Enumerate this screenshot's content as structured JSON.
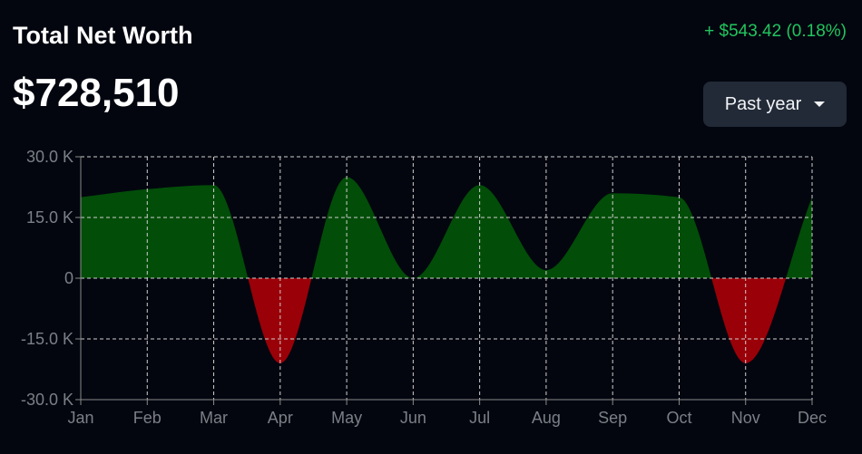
{
  "header": {
    "title": "Total Net Worth",
    "value": "$728,510",
    "change": "+ $543.42 (0.18%)",
    "range_select": "Past year"
  },
  "colors": {
    "positive": "#024d08",
    "negative": "#9a0008",
    "change": "#22c55e",
    "background": "#03060f"
  },
  "chart_data": {
    "type": "area",
    "categories": [
      "Jan",
      "Feb",
      "Mar",
      "Apr",
      "May",
      "Jun",
      "Jul",
      "Aug",
      "Sep",
      "Oct",
      "Nov",
      "Dec"
    ],
    "values": [
      20000,
      22000,
      23000,
      -21000,
      25000,
      0,
      23000,
      2000,
      21000,
      20000,
      -21000,
      20000
    ],
    "ylim": [
      -30000,
      30000
    ],
    "yticks": [
      30000,
      15000,
      0,
      -15000,
      -30000
    ],
    "ytick_labels": [
      "30.0 K",
      "15.0 K",
      "0",
      "-15.0 K",
      "-30.0 K"
    ],
    "grid": true,
    "xlabel": "",
    "ylabel": "",
    "title": ""
  }
}
